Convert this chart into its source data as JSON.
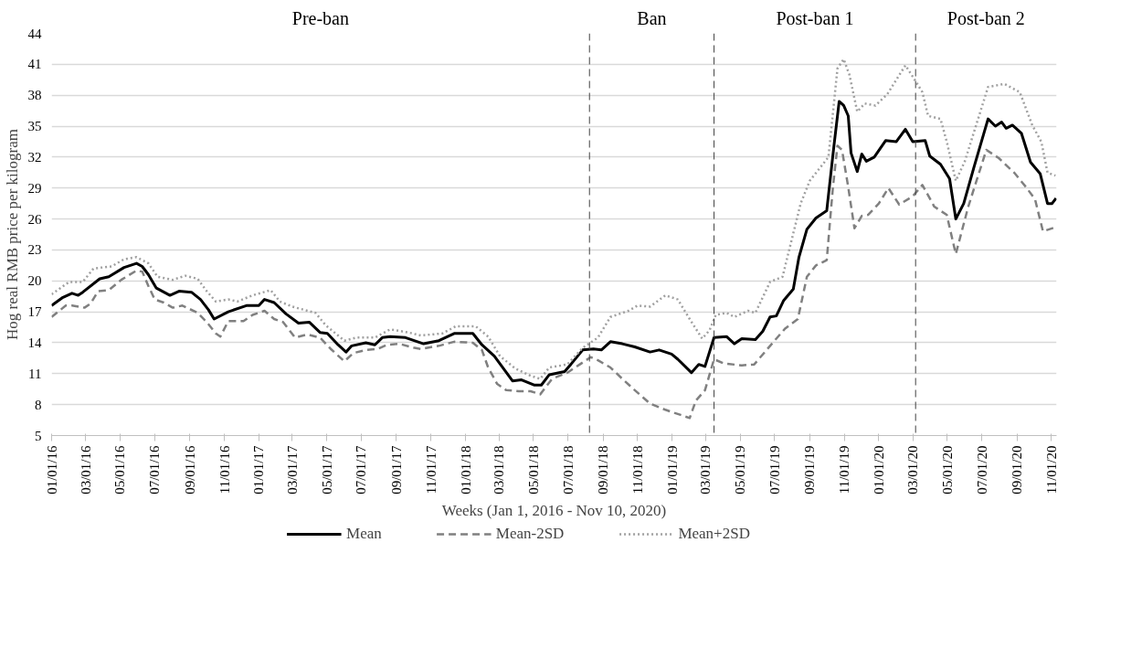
{
  "chart_data": {
    "type": "line",
    "xlabel": "Weeks (Jan 1, 2016 - Nov 10, 2020)",
    "ylabel": "Hog real RMB price per kilogram",
    "xlim": [
      "2016-01-01",
      "2020-11-10"
    ],
    "ylim": [
      5,
      44
    ],
    "yticks": [
      5,
      8,
      11,
      14,
      17,
      20,
      23,
      26,
      29,
      32,
      35,
      38,
      41,
      44
    ],
    "xticks": [
      {
        "value": "2016-01-01",
        "label": "01/01/16"
      },
      {
        "value": "2016-03-01",
        "label": "03/01/16"
      },
      {
        "value": "2016-05-01",
        "label": "05/01/16"
      },
      {
        "value": "2016-07-01",
        "label": "07/01/16"
      },
      {
        "value": "2016-09-01",
        "label": "09/01/16"
      },
      {
        "value": "2016-11-01",
        "label": "11/01/16"
      },
      {
        "value": "2017-01-01",
        "label": "01/01/17"
      },
      {
        "value": "2017-03-01",
        "label": "03/01/17"
      },
      {
        "value": "2017-05-01",
        "label": "05/01/17"
      },
      {
        "value": "2017-07-01",
        "label": "07/01/17"
      },
      {
        "value": "2017-09-01",
        "label": "09/01/17"
      },
      {
        "value": "2017-11-01",
        "label": "11/01/17"
      },
      {
        "value": "2018-01-01",
        "label": "01/01/18"
      },
      {
        "value": "2018-03-01",
        "label": "03/01/18"
      },
      {
        "value": "2018-05-01",
        "label": "05/01/18"
      },
      {
        "value": "2018-07-01",
        "label": "07/01/18"
      },
      {
        "value": "2018-09-01",
        "label": "09/01/18"
      },
      {
        "value": "2018-11-01",
        "label": "11/01/18"
      },
      {
        "value": "2019-01-01",
        "label": "01/01/19"
      },
      {
        "value": "2019-03-01",
        "label": "03/01/19"
      },
      {
        "value": "2019-05-01",
        "label": "05/01/19"
      },
      {
        "value": "2019-07-01",
        "label": "07/01/19"
      },
      {
        "value": "2019-09-01",
        "label": "09/01/19"
      },
      {
        "value": "2019-11-01",
        "label": "11/01/19"
      },
      {
        "value": "2020-01-01",
        "label": "01/01/20"
      },
      {
        "value": "2020-03-01",
        "label": "03/01/20"
      },
      {
        "value": "2020-05-01",
        "label": "05/01/20"
      },
      {
        "value": "2020-07-01",
        "label": "07/01/20"
      },
      {
        "value": "2020-09-01",
        "label": "09/01/20"
      },
      {
        "value": "2020-11-01",
        "label": "11/01/20"
      }
    ],
    "grid": "y",
    "legend": "bottom",
    "ref_lines": [
      {
        "axis": "x",
        "value": "2018-08-08",
        "color": "#404040",
        "line_style": "dashed"
      },
      {
        "axis": "x",
        "value": "2019-03-16",
        "color": "#404040",
        "line_style": "dashed"
      },
      {
        "axis": "x",
        "value": "2020-03-06",
        "color": "#404040",
        "line_style": "dashed"
      }
    ],
    "annotations": [
      "Pre-ban",
      "Ban",
      "Post-ban 1",
      "Post-ban 2"
    ],
    "series": [
      {
        "name": "Mean",
        "color": "#000000",
        "line_style": "solid",
        "x": [
          "2016-01-01",
          "2016-01-21",
          "2016-02-06",
          "2016-02-17",
          "2016-02-25",
          "2016-03-26",
          "2016-04-11",
          "2016-05-08",
          "2016-05-30",
          "2016-06-09",
          "2016-06-20",
          "2016-07-04",
          "2016-07-28",
          "2016-08-13",
          "2016-09-04",
          "2016-09-20",
          "2016-10-04",
          "2016-10-14",
          "2016-11-08",
          "2016-12-10",
          "2017-01-01",
          "2017-01-11",
          "2017-01-28",
          "2017-02-18",
          "2017-03-12",
          "2017-03-31",
          "2017-04-19",
          "2017-05-02",
          "2017-05-21",
          "2017-06-04",
          "2017-06-14",
          "2017-07-09",
          "2017-07-25",
          "2017-08-07",
          "2017-08-21",
          "2017-09-17",
          "2017-10-19",
          "2017-11-15",
          "2017-12-12",
          "2018-01-14",
          "2018-01-30",
          "2018-02-21",
          "2018-03-25",
          "2018-04-10",
          "2018-05-02",
          "2018-05-15",
          "2018-05-29",
          "2018-06-25",
          "2018-07-06",
          "2018-07-27",
          "2018-08-15",
          "2018-08-29",
          "2018-09-14",
          "2018-10-05",
          "2018-10-27",
          "2018-11-23",
          "2018-12-09",
          "2018-12-31",
          "2019-01-11",
          "2019-02-04",
          "2019-02-17",
          "2019-02-28",
          "2019-03-16",
          "2019-04-07",
          "2019-04-21",
          "2019-05-04",
          "2019-05-28",
          "2019-06-10",
          "2019-06-23",
          "2019-07-04",
          "2019-07-17",
          "2019-08-03",
          "2019-08-13",
          "2019-08-27",
          "2019-09-12",
          "2019-10-01",
          "2019-10-14",
          "2019-10-23",
          "2019-10-31",
          "2019-11-08",
          "2019-11-13",
          "2019-11-24",
          "2019-12-02",
          "2019-12-10",
          "2019-12-24",
          "2020-01-13",
          "2020-02-01",
          "2020-02-17",
          "2020-03-01",
          "2020-03-23",
          "2020-03-31",
          "2020-04-19",
          "2020-05-05",
          "2020-05-16",
          "2020-05-30",
          "2020-06-17",
          "2020-07-12",
          "2020-07-25",
          "2020-08-05",
          "2020-08-13",
          "2020-08-24",
          "2020-09-09",
          "2020-09-25",
          "2020-10-12",
          "2020-10-25",
          "2020-11-02",
          "2020-11-09"
        ],
        "values": [
          17.6,
          18.4,
          18.8,
          18.6,
          18.9,
          20.2,
          20.4,
          21.3,
          21.7,
          21.4,
          20.6,
          19.3,
          18.6,
          19.0,
          18.9,
          18.2,
          17.2,
          16.3,
          17.0,
          17.6,
          17.6,
          18.2,
          17.9,
          16.8,
          15.9,
          16.0,
          15.0,
          14.9,
          13.8,
          13.1,
          13.7,
          14.0,
          13.8,
          14.5,
          14.6,
          14.5,
          13.9,
          14.2,
          14.9,
          14.9,
          13.8,
          12.7,
          10.3,
          10.4,
          9.9,
          9.9,
          10.9,
          11.2,
          11.9,
          13.3,
          13.4,
          13.3,
          14.1,
          13.9,
          13.6,
          13.1,
          13.3,
          12.9,
          12.4,
          11.1,
          11.9,
          11.7,
          14.5,
          14.6,
          13.9,
          14.4,
          14.3,
          15.1,
          16.5,
          16.6,
          18.1,
          19.2,
          22.3,
          25.0,
          26.1,
          26.8,
          33.2,
          37.4,
          37.0,
          36.0,
          32.4,
          30.6,
          32.3,
          31.6,
          32.0,
          33.6,
          33.5,
          34.7,
          33.5,
          33.6,
          32.1,
          31.3,
          29.9,
          26.0,
          27.5,
          31.0,
          35.7,
          35.0,
          35.4,
          34.8,
          35.1,
          34.3,
          31.5,
          30.4,
          27.5,
          27.5,
          28.0
        ]
      },
      {
        "name": "Mean-2SD",
        "color": "#808080",
        "line_style": "dashed",
        "x": [
          "2016-01-01",
          "2016-01-26",
          "2016-02-06",
          "2016-02-28",
          "2016-03-10",
          "2016-03-23",
          "2016-04-11",
          "2016-05-03",
          "2016-05-30",
          "2016-06-09",
          "2016-06-20",
          "2016-07-01",
          "2016-07-17",
          "2016-08-02",
          "2016-08-19",
          "2016-09-15",
          "2016-10-01",
          "2016-10-17",
          "2016-10-25",
          "2016-11-08",
          "2016-12-05",
          "2016-12-21",
          "2017-01-11",
          "2017-01-28",
          "2017-02-13",
          "2017-03-06",
          "2017-03-28",
          "2017-04-19",
          "2017-05-08",
          "2017-06-01",
          "2017-06-17",
          "2017-07-09",
          "2017-07-30",
          "2017-08-15",
          "2017-09-06",
          "2017-10-03",
          "2017-10-14",
          "2017-11-15",
          "2017-12-12",
          "2018-01-14",
          "2018-01-30",
          "2018-02-10",
          "2018-02-26",
          "2018-03-14",
          "2018-04-05",
          "2018-04-26",
          "2018-05-13",
          "2018-06-03",
          "2018-06-30",
          "2018-07-22",
          "2018-08-10",
          "2018-08-23",
          "2018-09-14",
          "2018-10-05",
          "2018-10-27",
          "2018-11-23",
          "2018-12-20",
          "2019-01-16",
          "2019-02-01",
          "2019-02-12",
          "2019-02-28",
          "2019-03-16",
          "2019-04-02",
          "2019-05-04",
          "2019-05-26",
          "2019-07-04",
          "2019-07-20",
          "2019-08-11",
          "2019-08-27",
          "2019-09-12",
          "2019-10-01",
          "2019-10-12",
          "2019-10-20",
          "2019-10-28",
          "2019-11-08",
          "2019-11-19",
          "2019-12-02",
          "2019-12-13",
          "2020-01-01",
          "2020-01-18",
          "2020-02-06",
          "2020-03-01",
          "2020-03-18",
          "2020-04-08",
          "2020-04-30",
          "2020-05-16",
          "2020-06-07",
          "2020-07-09",
          "2020-07-31",
          "2020-08-27",
          "2020-09-17",
          "2020-10-03",
          "2020-10-17",
          "2020-11-08"
        ],
        "values": [
          16.5,
          17.6,
          17.6,
          17.4,
          17.8,
          19.0,
          19.1,
          20.1,
          21.0,
          20.9,
          19.5,
          18.2,
          17.9,
          17.4,
          17.6,
          16.9,
          16.0,
          14.9,
          14.6,
          16.1,
          16.1,
          16.7,
          17.1,
          16.3,
          16.0,
          14.5,
          14.8,
          14.5,
          13.4,
          12.2,
          13.0,
          13.3,
          13.4,
          13.8,
          13.9,
          13.5,
          13.4,
          13.7,
          14.1,
          14.0,
          13.3,
          11.6,
          10.0,
          9.4,
          9.3,
          9.3,
          9.0,
          10.5,
          11.1,
          11.9,
          12.6,
          12.3,
          11.6,
          10.5,
          9.4,
          8.1,
          7.5,
          7.0,
          6.7,
          8.4,
          9.4,
          12.4,
          12.0,
          11.8,
          11.9,
          14.4,
          15.4,
          16.3,
          20.4,
          21.5,
          22.0,
          29.1,
          33.1,
          32.7,
          29.1,
          25.1,
          26.3,
          26.4,
          27.5,
          29.0,
          27.4,
          28.2,
          29.3,
          27.2,
          26.4,
          22.6,
          27.2,
          32.7,
          31.9,
          30.5,
          29.1,
          27.9,
          24.8,
          25.2
        ]
      },
      {
        "name": "Mean+2SD",
        "color": "#a0a0a0",
        "line_style": "dotted",
        "x": [
          "2016-01-01",
          "2016-02-01",
          "2016-02-25",
          "2016-03-15",
          "2016-04-16",
          "2016-05-08",
          "2016-05-30",
          "2016-06-20",
          "2016-07-06",
          "2016-08-02",
          "2016-08-24",
          "2016-09-15",
          "2016-10-01",
          "2016-10-17",
          "2016-11-08",
          "2016-11-24",
          "2016-12-21",
          "2017-01-22",
          "2017-02-07",
          "2017-03-01",
          "2017-04-11",
          "2017-04-29",
          "2017-06-01",
          "2017-06-22",
          "2017-07-25",
          "2017-08-21",
          "2017-09-22",
          "2017-10-14",
          "2017-11-21",
          "2017-12-15",
          "2018-01-19",
          "2018-02-10",
          "2018-03-03",
          "2018-03-30",
          "2018-04-26",
          "2018-05-13",
          "2018-05-29",
          "2018-06-30",
          "2018-07-27",
          "2018-08-23",
          "2018-09-14",
          "2018-10-16",
          "2018-11-01",
          "2018-11-23",
          "2018-12-20",
          "2019-01-11",
          "2019-02-01",
          "2019-02-23",
          "2019-03-08",
          "2019-03-19",
          "2019-04-07",
          "2019-04-21",
          "2019-05-15",
          "2019-05-28",
          "2019-06-23",
          "2019-07-15",
          "2019-08-16",
          "2019-09-01",
          "2019-10-04",
          "2019-10-20",
          "2019-10-31",
          "2019-11-10",
          "2019-11-24",
          "2019-12-07",
          "2019-12-26",
          "2020-01-16",
          "2020-02-17",
          "2020-03-01",
          "2020-03-18",
          "2020-03-28",
          "2020-04-19",
          "2020-04-30",
          "2020-05-16",
          "2020-06-01",
          "2020-07-12",
          "2020-08-10",
          "2020-09-06",
          "2020-09-28",
          "2020-10-14",
          "2020-10-25",
          "2020-11-08"
        ],
        "values": [
          18.7,
          19.9,
          19.9,
          21.2,
          21.4,
          22.1,
          22.3,
          21.7,
          20.4,
          20.1,
          20.5,
          20.2,
          19.0,
          18.0,
          18.2,
          18.0,
          18.6,
          19.1,
          18.0,
          17.5,
          16.9,
          15.7,
          14.2,
          14.5,
          14.5,
          15.3,
          15.0,
          14.7,
          14.9,
          15.6,
          15.6,
          14.6,
          12.7,
          11.5,
          10.8,
          10.5,
          11.6,
          11.9,
          13.5,
          14.5,
          16.5,
          17.1,
          17.6,
          17.5,
          18.6,
          18.2,
          16.3,
          14.4,
          15.2,
          16.7,
          16.9,
          16.5,
          17.1,
          16.9,
          19.9,
          20.4,
          27.5,
          29.7,
          32.0,
          40.6,
          41.5,
          40.0,
          36.4,
          37.2,
          37.0,
          38.1,
          40.9,
          39.8,
          38.3,
          36.0,
          35.7,
          33.5,
          29.7,
          31.6,
          38.8,
          39.1,
          38.3,
          35.1,
          33.5,
          30.5,
          30.2
        ]
      }
    ]
  }
}
